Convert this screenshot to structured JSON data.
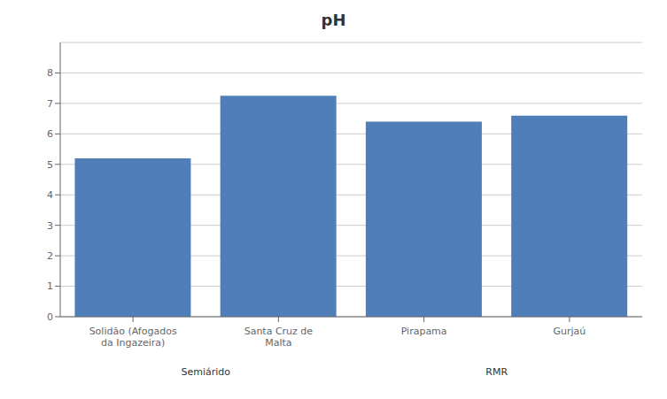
{
  "chart_data": {
    "type": "bar",
    "title": "pH",
    "categories": [
      "Solidão (Afogados\nda Ingazeira)",
      "Santa Cruz de\nMalta",
      "Pirapama",
      "Gurjaú"
    ],
    "values": [
      5.2,
      7.25,
      6.4,
      6.6
    ],
    "color": "#4f7eb8",
    "ylim": [
      0,
      9
    ],
    "yticks": [
      0,
      1,
      2,
      3,
      4,
      5,
      6,
      7,
      8
    ],
    "grid": true,
    "annotations": [
      "Semiárido",
      "RMR"
    ]
  }
}
